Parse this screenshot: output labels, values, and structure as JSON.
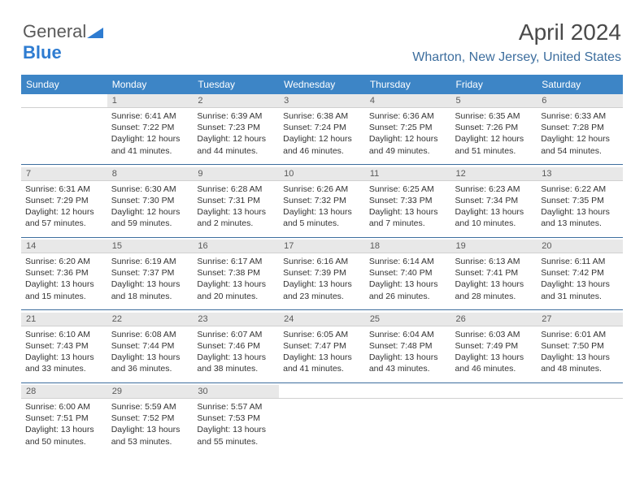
{
  "logo": {
    "part1": "General",
    "part2": "Blue"
  },
  "title": "April 2024",
  "location": "Wharton, New Jersey, United States",
  "colors": {
    "header_bg": "#3d85c6",
    "header_fg": "#ffffff",
    "daynum_bg": "#e8e8e8",
    "sep_line": "#3d6e9e",
    "location_color": "#3d6e9e",
    "logo_blue": "#2e7cd1"
  },
  "day_names": [
    "Sunday",
    "Monday",
    "Tuesday",
    "Wednesday",
    "Thursday",
    "Friday",
    "Saturday"
  ],
  "weeks": [
    {
      "nums": [
        "",
        "1",
        "2",
        "3",
        "4",
        "5",
        "6"
      ],
      "cells": [
        "",
        "Sunrise: 6:41 AM\nSunset: 7:22 PM\nDaylight: 12 hours and 41 minutes.",
        "Sunrise: 6:39 AM\nSunset: 7:23 PM\nDaylight: 12 hours and 44 minutes.",
        "Sunrise: 6:38 AM\nSunset: 7:24 PM\nDaylight: 12 hours and 46 minutes.",
        "Sunrise: 6:36 AM\nSunset: 7:25 PM\nDaylight: 12 hours and 49 minutes.",
        "Sunrise: 6:35 AM\nSunset: 7:26 PM\nDaylight: 12 hours and 51 minutes.",
        "Sunrise: 6:33 AM\nSunset: 7:28 PM\nDaylight: 12 hours and 54 minutes."
      ]
    },
    {
      "nums": [
        "7",
        "8",
        "9",
        "10",
        "11",
        "12",
        "13"
      ],
      "cells": [
        "Sunrise: 6:31 AM\nSunset: 7:29 PM\nDaylight: 12 hours and 57 minutes.",
        "Sunrise: 6:30 AM\nSunset: 7:30 PM\nDaylight: 12 hours and 59 minutes.",
        "Sunrise: 6:28 AM\nSunset: 7:31 PM\nDaylight: 13 hours and 2 minutes.",
        "Sunrise: 6:26 AM\nSunset: 7:32 PM\nDaylight: 13 hours and 5 minutes.",
        "Sunrise: 6:25 AM\nSunset: 7:33 PM\nDaylight: 13 hours and 7 minutes.",
        "Sunrise: 6:23 AM\nSunset: 7:34 PM\nDaylight: 13 hours and 10 minutes.",
        "Sunrise: 6:22 AM\nSunset: 7:35 PM\nDaylight: 13 hours and 13 minutes."
      ]
    },
    {
      "nums": [
        "14",
        "15",
        "16",
        "17",
        "18",
        "19",
        "20"
      ],
      "cells": [
        "Sunrise: 6:20 AM\nSunset: 7:36 PM\nDaylight: 13 hours and 15 minutes.",
        "Sunrise: 6:19 AM\nSunset: 7:37 PM\nDaylight: 13 hours and 18 minutes.",
        "Sunrise: 6:17 AM\nSunset: 7:38 PM\nDaylight: 13 hours and 20 minutes.",
        "Sunrise: 6:16 AM\nSunset: 7:39 PM\nDaylight: 13 hours and 23 minutes.",
        "Sunrise: 6:14 AM\nSunset: 7:40 PM\nDaylight: 13 hours and 26 minutes.",
        "Sunrise: 6:13 AM\nSunset: 7:41 PM\nDaylight: 13 hours and 28 minutes.",
        "Sunrise: 6:11 AM\nSunset: 7:42 PM\nDaylight: 13 hours and 31 minutes."
      ]
    },
    {
      "nums": [
        "21",
        "22",
        "23",
        "24",
        "25",
        "26",
        "27"
      ],
      "cells": [
        "Sunrise: 6:10 AM\nSunset: 7:43 PM\nDaylight: 13 hours and 33 minutes.",
        "Sunrise: 6:08 AM\nSunset: 7:44 PM\nDaylight: 13 hours and 36 minutes.",
        "Sunrise: 6:07 AM\nSunset: 7:46 PM\nDaylight: 13 hours and 38 minutes.",
        "Sunrise: 6:05 AM\nSunset: 7:47 PM\nDaylight: 13 hours and 41 minutes.",
        "Sunrise: 6:04 AM\nSunset: 7:48 PM\nDaylight: 13 hours and 43 minutes.",
        "Sunrise: 6:03 AM\nSunset: 7:49 PM\nDaylight: 13 hours and 46 minutes.",
        "Sunrise: 6:01 AM\nSunset: 7:50 PM\nDaylight: 13 hours and 48 minutes."
      ]
    },
    {
      "nums": [
        "28",
        "29",
        "30",
        "",
        "",
        "",
        ""
      ],
      "cells": [
        "Sunrise: 6:00 AM\nSunset: 7:51 PM\nDaylight: 13 hours and 50 minutes.",
        "Sunrise: 5:59 AM\nSunset: 7:52 PM\nDaylight: 13 hours and 53 minutes.",
        "Sunrise: 5:57 AM\nSunset: 7:53 PM\nDaylight: 13 hours and 55 minutes.",
        "",
        "",
        "",
        ""
      ]
    }
  ]
}
